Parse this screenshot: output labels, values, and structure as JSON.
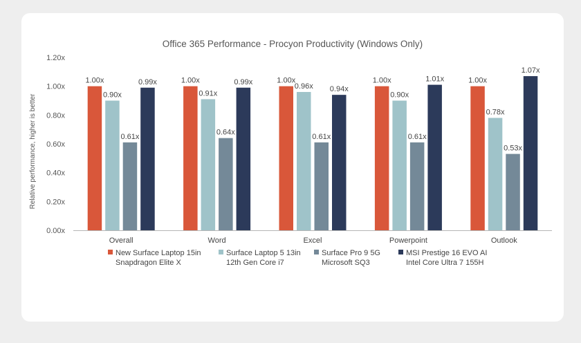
{
  "chart_data": {
    "type": "bar",
    "title": "Office 365 Performance - Procyon Productivity (Windows Only)",
    "ylabel": "Relative performance, higher is better",
    "xlabel": "",
    "ylim": [
      0,
      1.2
    ],
    "yticks": [
      "0.00x",
      "0.20x",
      "0.40x",
      "0.60x",
      "0.80x",
      "1.00x",
      "1.20x"
    ],
    "ytick_values": [
      0,
      0.2,
      0.4,
      0.6,
      0.8,
      1.0,
      1.2
    ],
    "grid": false,
    "legend_position": "bottom",
    "categories": [
      "Overall",
      "Word",
      "Excel",
      "Powerpoint",
      "Outlook"
    ],
    "series": [
      {
        "name": "New Surface Laptop 15in Snapdragon Elite X",
        "legend_lines": [
          "New Surface Laptop 15in",
          "Snapdragon Elite X"
        ],
        "color": "#d9573a",
        "values": [
          1.0,
          1.0,
          1.0,
          1.0,
          1.0
        ],
        "labels": [
          "1.00x",
          "1.00x",
          "1.00x",
          "1.00x",
          "1.00x"
        ]
      },
      {
        "name": "Surface Laptop 5 13in 12th Gen Core i7",
        "legend_lines": [
          "Surface Laptop 5 13in",
          "12th Gen Core i7"
        ],
        "color": "#9fc3c9",
        "values": [
          0.9,
          0.91,
          0.96,
          0.9,
          0.78
        ],
        "labels": [
          "0.90x",
          "0.91x",
          "0.96x",
          "0.90x",
          "0.78x"
        ]
      },
      {
        "name": "Surface Pro 9 5G Microsoft SQ3",
        "legend_lines": [
          "Surface Pro 9 5G",
          "Microsoft SQ3"
        ],
        "color": "#748998",
        "values": [
          0.61,
          0.64,
          0.61,
          0.61,
          0.53
        ],
        "labels": [
          "0.61x",
          "0.64x",
          "0.61x",
          "0.61x",
          "0.53x"
        ]
      },
      {
        "name": "MSI Prestige 16 EVO AI Intel Core Ultra 7 155H",
        "legend_lines": [
          "MSI Prestige 16 EVO AI",
          "Intel Core Ultra 7 155H"
        ],
        "color": "#2c3a5a",
        "values": [
          0.99,
          0.99,
          0.94,
          1.01,
          1.07
        ],
        "labels": [
          "0.99x",
          "0.99x",
          "0.94x",
          "1.01x",
          "1.07x"
        ]
      }
    ]
  }
}
